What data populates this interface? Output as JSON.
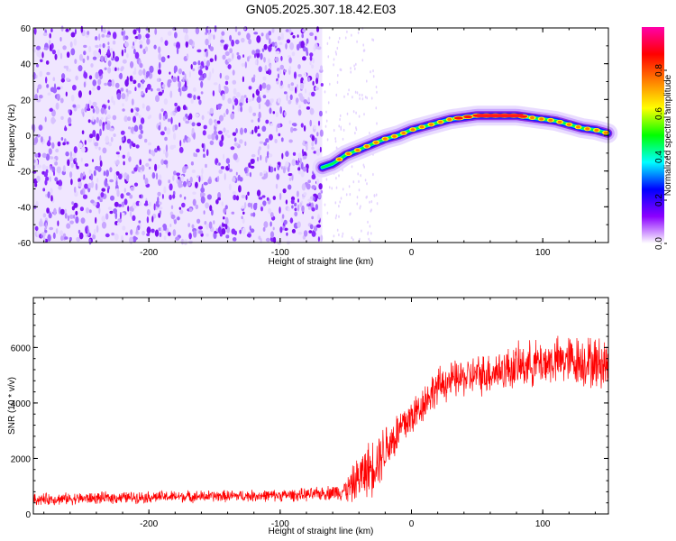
{
  "title": "GN05.2025.307.18.42.E03",
  "chart_data": [
    {
      "type": "heatmap",
      "title": "GN05.2025.307.18.42.E03",
      "xlabel": "Height of straight line (km)",
      "ylabel": "Frequency (Hz)",
      "xlim": [
        -288,
        150
      ],
      "ylim": [
        -60,
        60
      ],
      "xticks": [
        "-200",
        "-100",
        "0",
        "100"
      ],
      "xtick_values": [
        -200,
        -100,
        0,
        100
      ],
      "yticks": [
        "-60",
        "-40",
        "-20",
        "0",
        "20",
        "40",
        "60"
      ],
      "ytick_values": [
        -60,
        -40,
        -20,
        0,
        20,
        40,
        60
      ],
      "noise_region_x": [
        -288,
        -68
      ],
      "signal_track": {
        "x": [
          -68,
          -60,
          -50,
          -40,
          -30,
          -20,
          -10,
          0,
          10,
          20,
          30,
          40,
          50,
          60,
          70,
          80,
          90,
          100,
          110,
          120,
          130,
          140,
          150
        ],
        "freq": [
          -18,
          -16,
          -11,
          -8,
          -5,
          -2,
          0,
          3,
          5,
          7,
          9,
          10,
          11,
          11,
          11,
          11,
          10,
          9,
          8,
          6,
          4,
          3,
          1
        ]
      },
      "colorbar": {
        "label": "Normalized spectral amplitude",
        "range": [
          0,
          1
        ],
        "ticks": [
          "0.0",
          "0.2",
          "0.4",
          "0.6",
          "0.8"
        ],
        "tick_values": [
          0.0,
          0.2,
          0.4,
          0.6,
          0.8
        ],
        "colormap": [
          "#ffffff",
          "#8b00ff",
          "#0000ff",
          "#00ffff",
          "#00ff00",
          "#ffff00",
          "#ff8000",
          "#ff0000",
          "#ff00aa"
        ]
      }
    },
    {
      "type": "line",
      "xlabel": "Height of straight line (km)",
      "ylabel": "SNR (10 * v/v)",
      "xlim": [
        -288,
        150
      ],
      "ylim": [
        0,
        7800
      ],
      "xticks": [
        "-200",
        "-100",
        "0",
        "100"
      ],
      "xtick_values": [
        -200,
        -100,
        0,
        100
      ],
      "yticks": [
        "0",
        "2000",
        "4000",
        "6000"
      ],
      "ytick_values": [
        0,
        2000,
        4000,
        6000
      ],
      "color": "#ff0000",
      "series": [
        {
          "x": [
            -288,
            -270,
            -250,
            -230,
            -210,
            -190,
            -170,
            -150,
            -130,
            -110,
            -90,
            -75,
            -65,
            -55,
            -48,
            -42,
            -36,
            -30,
            -24,
            -18,
            -12,
            -6,
            0,
            6,
            12,
            18,
            24,
            30,
            40,
            50,
            60,
            70,
            80,
            90,
            100,
            110,
            120,
            130,
            140,
            150
          ],
          "y": [
            520,
            540,
            560,
            580,
            600,
            620,
            630,
            640,
            650,
            660,
            680,
            700,
            760,
            800,
            900,
            1200,
            1500,
            1700,
            2100,
            2500,
            2800,
            3200,
            3500,
            3800,
            4200,
            4500,
            4700,
            4800,
            4900,
            5000,
            5100,
            5200,
            5300,
            5400,
            5450,
            5500,
            5550,
            5500,
            5450,
            5400
          ],
          "noise_amplitude": [
            250,
            250,
            250,
            250,
            250,
            250,
            250,
            250,
            250,
            250,
            260,
            280,
            300,
            350,
            600,
            900,
            1100,
            1200,
            1200,
            1100,
            1000,
            1000,
            900,
            800,
            800,
            800,
            800,
            800,
            800,
            850,
            900,
            900,
            950,
            950,
            1000,
            1000,
            1050,
            1100,
            1100,
            1100
          ]
        }
      ]
    }
  ]
}
